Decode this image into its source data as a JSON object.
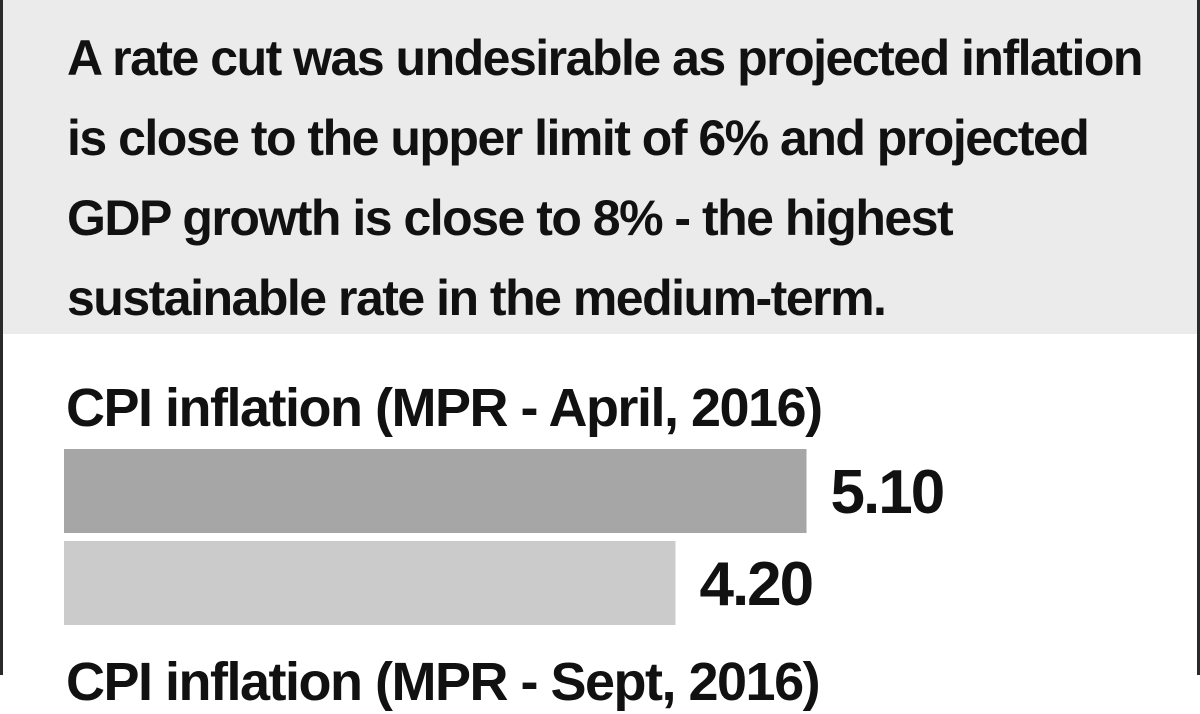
{
  "intro": {
    "text": "A rate cut was undesirable as projected inflation is close to the upper limit of 6% and projected GDP growth is close to 8% - the highest sustainable rate in the medium-term."
  },
  "chart_data": {
    "type": "bar",
    "orientation": "horizontal",
    "title": "CPI inflation (MPR - April, 2016)",
    "values": [
      5.1,
      4.2
    ],
    "value_labels": [
      "5.10",
      "4.20"
    ],
    "colors": [
      "#a6a6a6",
      "#cbcbcb"
    ],
    "xlim": [
      0,
      6.8
    ]
  },
  "next_chart": {
    "title": "CPI inflation (MPR - Sept, 2016)"
  }
}
